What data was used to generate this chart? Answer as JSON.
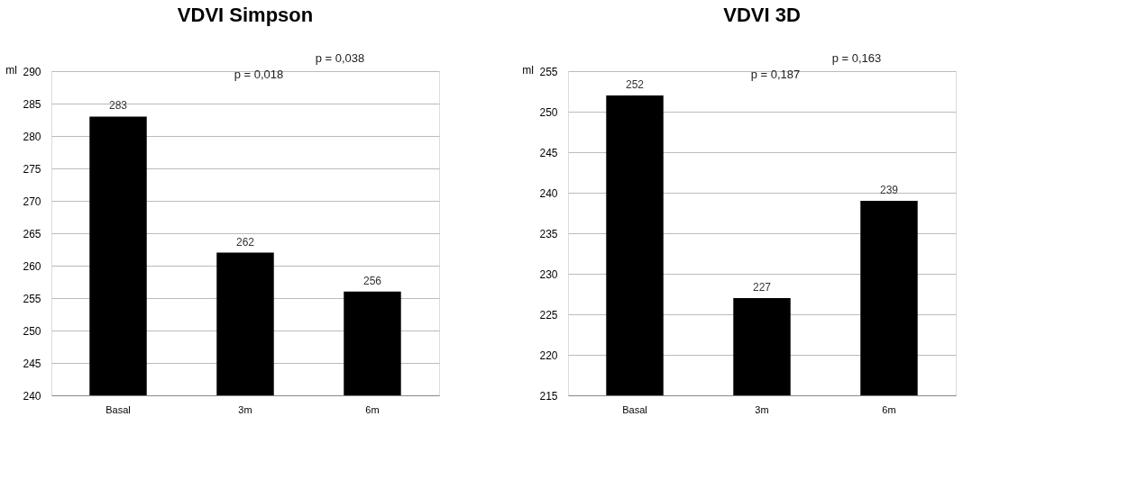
{
  "chart_data": [
    {
      "type": "bar",
      "title": "VDVI Simpson",
      "ylabel": "ml",
      "categories": [
        "Basal",
        "3m",
        "6m"
      ],
      "values": [
        283,
        262,
        256
      ],
      "color": "#000000",
      "ylim": [
        240,
        290
      ],
      "yticks": [
        240,
        245,
        250,
        255,
        260,
        265,
        270,
        275,
        280,
        285,
        290
      ],
      "grid": "y",
      "data_labels": true,
      "annotations": [
        "p = 0,038",
        "p = 0,018"
      ]
    },
    {
      "type": "bar",
      "title": "VDVI 3D",
      "ylabel": "ml",
      "categories": [
        "Basal",
        "3m",
        "6m"
      ],
      "values": [
        252,
        227,
        239
      ],
      "color": "#000000",
      "ylim": [
        215,
        255
      ],
      "yticks": [
        215,
        220,
        225,
        230,
        235,
        240,
        245,
        250,
        255
      ],
      "grid": "y",
      "data_labels": true,
      "annotations": [
        "p = 0,163",
        "p = 0,187"
      ]
    }
  ]
}
